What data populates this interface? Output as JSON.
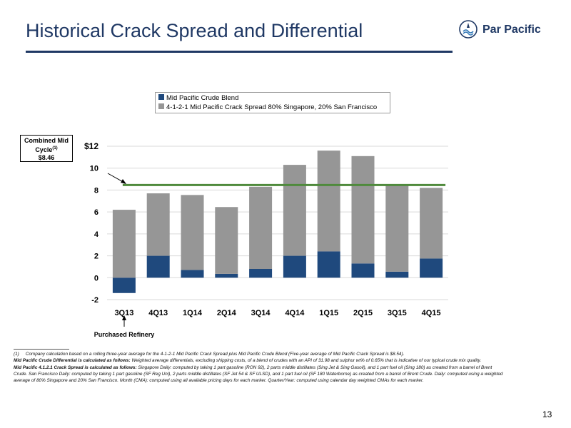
{
  "header": {
    "title": "Historical Crack Spread and Differential",
    "logo_text": "Par Pacific"
  },
  "callout": {
    "line1": "Combined Mid",
    "line2": "Cycle",
    "sup": "(1)",
    "value": "$8.46"
  },
  "annotation": {
    "purchased_refinery": "Purchased Refinery"
  },
  "colors": {
    "title": "#1f3864",
    "crude_blend": "#1f497d",
    "crack_spread": "#969696",
    "mid_cycle_line": "#4f8a3c"
  },
  "chart_data": {
    "type": "bar",
    "stacked": true,
    "categories": [
      "3Q13",
      "4Q13",
      "1Q14",
      "2Q14",
      "3Q14",
      "4Q14",
      "1Q15",
      "2Q15",
      "3Q15",
      "4Q15"
    ],
    "series": [
      {
        "name": "Mid Pacific Crude Blend",
        "values": [
          -1.4,
          2.0,
          0.7,
          0.35,
          0.8,
          2.0,
          2.4,
          1.3,
          0.55,
          1.75
        ]
      },
      {
        "name": "4-1-2-1 Mid Pacific Crack Spread 80% Singapore, 20% San Francisco",
        "values": [
          6.2,
          5.7,
          6.85,
          6.1,
          7.5,
          8.3,
          9.2,
          9.8,
          7.85,
          6.45
        ]
      }
    ],
    "reference_line": {
      "value": 8.46
    },
    "yticks": [
      "$12",
      "10",
      "8",
      "6",
      "4",
      "2",
      "0",
      "-2"
    ],
    "ylim": [
      -2,
      12
    ],
    "grid": true,
    "legend_position": "top"
  },
  "footnotes": {
    "note1_marker": "(1)",
    "note1": "Company calculation based on a rolling three-year average for the 4-1-2-1 Mid Pacific Crack Spread plus Mid Pacific Crude Blend (Five-year average of Mid Pacific Crack Spread is $8.54).",
    "note2_label": "Mid Pacific Crude Differential is calculated as follows:",
    "note2": " Weighted average differentials, excluding shipping costs, of a blend of crudes with an API of 31.98 and sulphur wt% of 0.65% that is indicative of our typical crude mix quality.",
    "note3_label": "Mid Pacific 4.1.2.1 Crack Spread is calculated as follows:",
    "note3": " Singapore Daily: computed by taking 1 part gasoline (RON 92), 2 parts middle distillates (Sing Jet & Sing Gasoil), and 1 part fuel oil (Sing 180) as created from a barrel of Brent Crude. San Francisco Daily: computed by taking 1 part gasoline (SF Reg Unl), 2 parts middle distillates (SF Jet 54 & SF ULSD), and 1 part fuel oil (SF 180 Waterborne) as created from a barrel of Brent Crude. Daily: computed using a weighted average of 80% Singapore and 20% San Francisco. Month (CMA): computed using all available pricing days for each marker. Quarter/Year: computed using calendar day weighted CMAs for each marker."
  },
  "page_number": "13"
}
